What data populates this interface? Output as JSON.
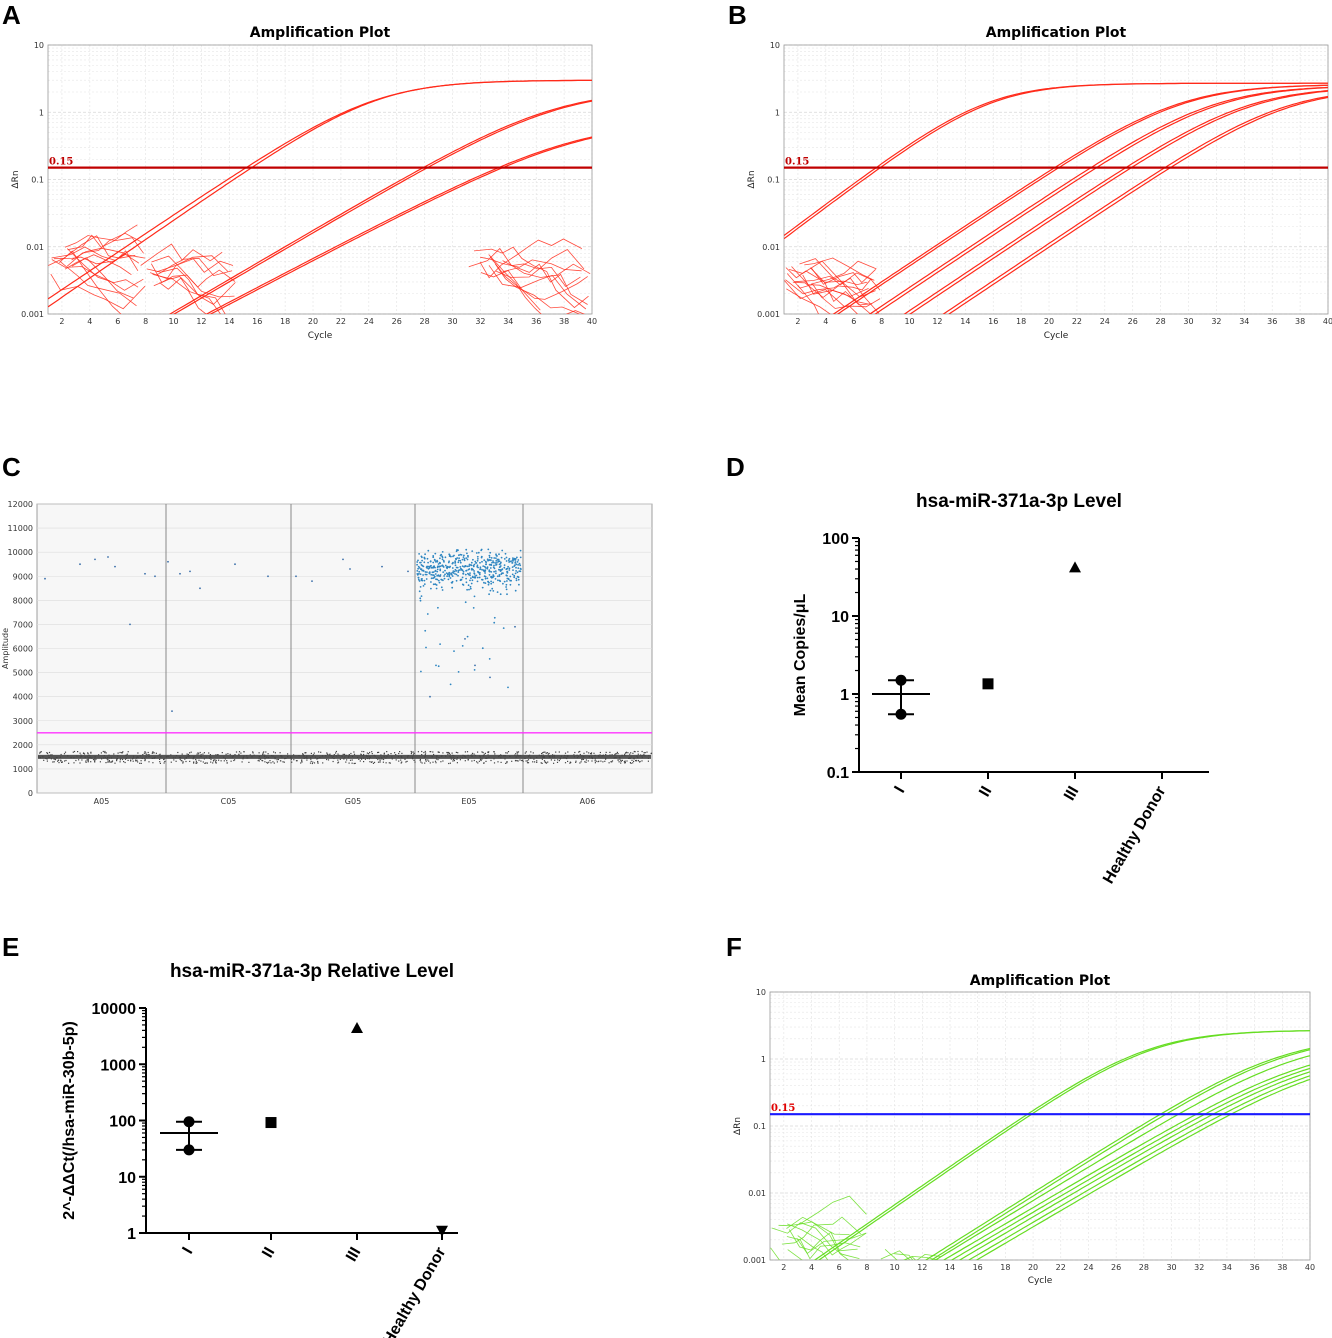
{
  "panels": {
    "A": "A",
    "B": "B",
    "C": "C",
    "D": "D",
    "E": "E",
    "F": "F"
  },
  "chart_data": [
    {
      "id": "A",
      "type": "line",
      "title": "Amplification Plot",
      "xlabel": "Cycle",
      "ylabel": "ΔRn",
      "yscale": "log",
      "ylim": [
        0.001,
        10
      ],
      "xlim": [
        1,
        40
      ],
      "xticks": [
        2,
        4,
        6,
        8,
        10,
        12,
        14,
        16,
        18,
        20,
        22,
        24,
        26,
        28,
        30,
        32,
        34,
        36,
        38,
        40
      ],
      "yticks": [
        {
          "v": 10,
          "label": "10"
        },
        {
          "v": 1,
          "label": "1"
        },
        {
          "v": 0.1,
          "label": "0.1"
        },
        {
          "v": 0.01,
          "label": "0.01"
        },
        {
          "v": 0.001,
          "label": "0.001"
        }
      ],
      "threshold": {
        "value": 0.15,
        "label": "0.15",
        "color": "#c00000"
      },
      "line_color": "#ff2a1a",
      "curves": [
        {
          "ct": 15.6,
          "plateau": 3.0,
          "k": 0.33
        },
        {
          "ct": 15.2,
          "plateau": 3.0,
          "k": 0.32
        },
        {
          "ct": 27.9,
          "plateau": 2.2,
          "k": 0.28
        },
        {
          "ct": 28.2,
          "plateau": 2.2,
          "k": 0.28
        },
        {
          "ct": 33.3,
          "plateau": 0.75,
          "k": 0.25
        },
        {
          "ct": 33.6,
          "plateau": 0.75,
          "k": 0.25
        }
      ]
    },
    {
      "id": "B",
      "type": "line",
      "title": "Amplification Plot",
      "xlabel": "Cycle",
      "ylabel": "ΔRn",
      "yscale": "log",
      "ylim": [
        0.001,
        10
      ],
      "xlim": [
        1,
        40
      ],
      "xticks": [
        2,
        4,
        6,
        8,
        10,
        12,
        14,
        16,
        18,
        20,
        22,
        24,
        26,
        28,
        30,
        32,
        34,
        36,
        38,
        40
      ],
      "yticks": [
        {
          "v": 10,
          "label": "10"
        },
        {
          "v": 1,
          "label": "1"
        },
        {
          "v": 0.1,
          "label": "0.1"
        },
        {
          "v": 0.01,
          "label": "0.01"
        },
        {
          "v": 0.001,
          "label": "0.001"
        }
      ],
      "threshold": {
        "value": 0.15,
        "label": "0.15",
        "color": "#c00000"
      },
      "line_color": "#ff2a1a",
      "curves": [
        {
          "ct": 7.6,
          "plateau": 2.7,
          "k": 0.36
        },
        {
          "ct": 7.9,
          "plateau": 2.7,
          "k": 0.36
        },
        {
          "ct": 20.4,
          "plateau": 2.6,
          "k": 0.32
        },
        {
          "ct": 20.7,
          "plateau": 2.6,
          "k": 0.32
        },
        {
          "ct": 23.0,
          "plateau": 2.5,
          "k": 0.32
        },
        {
          "ct": 23.4,
          "plateau": 2.5,
          "k": 0.32
        },
        {
          "ct": 25.5,
          "plateau": 2.4,
          "k": 0.32
        },
        {
          "ct": 25.9,
          "plateau": 2.4,
          "k": 0.32
        },
        {
          "ct": 28.3,
          "plateau": 2.3,
          "k": 0.32
        },
        {
          "ct": 28.7,
          "plateau": 2.3,
          "k": 0.32
        }
      ]
    },
    {
      "id": "C",
      "type": "scatter",
      "ylabel": "Amplitude",
      "ylim": [
        0,
        12000
      ],
      "yticks": [
        0,
        1000,
        2000,
        3000,
        4000,
        5000,
        6000,
        7000,
        8000,
        9000,
        10000,
        11000,
        12000
      ],
      "wells": [
        "A05",
        "C05",
        "G05",
        "E05",
        "A06"
      ],
      "threshold": 2500,
      "threshold_color": "#ff33ff",
      "negative_band": [
        1250,
        1750
      ],
      "positive_well": "E05",
      "positive_cluster_mean": 9250
    },
    {
      "id": "D",
      "type": "scatter",
      "title": "hsa-miR-371a-3p Level",
      "ylabel": "Mean Copies/μL",
      "yscale": "log",
      "ylim": [
        0.1,
        100
      ],
      "yticks": [
        {
          "v": 100,
          "label": "100"
        },
        {
          "v": 10,
          "label": "10"
        },
        {
          "v": 1,
          "label": "1"
        },
        {
          "v": 0.1,
          "label": "0.1"
        }
      ],
      "categories": [
        "I",
        "II",
        "III",
        "Healthy Donor"
      ],
      "series": [
        {
          "category": "I",
          "marker": "circle",
          "points": [
            1.5,
            0.55
          ],
          "mean": 1.0
        },
        {
          "category": "II",
          "marker": "square",
          "points": [
            1.35
          ]
        },
        {
          "category": "III",
          "marker": "triangle-up",
          "points": [
            42
          ]
        },
        {
          "category": "Healthy Donor",
          "marker": "none",
          "points": []
        }
      ]
    },
    {
      "id": "E",
      "type": "scatter",
      "title": "hsa-miR-371a-3p Relative Level",
      "ylabel": "2^-ΔΔCt(/hsa-miR-30b-5p)",
      "yscale": "log",
      "ylim": [
        1,
        10000
      ],
      "yticks": [
        {
          "v": 10000,
          "label": "10000"
        },
        {
          "v": 1000,
          "label": "1000"
        },
        {
          "v": 100,
          "label": "100"
        },
        {
          "v": 10,
          "label": "10"
        },
        {
          "v": 1,
          "label": "1"
        }
      ],
      "categories": [
        "I",
        "II",
        "III",
        "Healthy Donor"
      ],
      "series": [
        {
          "category": "I",
          "marker": "circle",
          "points": [
            95,
            30
          ],
          "mean": 60
        },
        {
          "category": "II",
          "marker": "square",
          "points": [
            92
          ]
        },
        {
          "category": "III",
          "marker": "triangle-up",
          "points": [
            4400
          ]
        },
        {
          "category": "Healthy Donor",
          "marker": "triangle-down",
          "points": [
            1.05
          ]
        }
      ]
    },
    {
      "id": "F",
      "type": "line",
      "title": "Amplification Plot",
      "xlabel": "Cycle",
      "ylabel": "ΔRn",
      "yscale": "log",
      "ylim": [
        0.001,
        10
      ],
      "xlim": [
        1,
        40
      ],
      "xticks": [
        2,
        4,
        6,
        8,
        10,
        12,
        14,
        16,
        18,
        20,
        22,
        24,
        26,
        28,
        30,
        32,
        34,
        36,
        38,
        40
      ],
      "yticks": [
        {
          "v": 10,
          "label": "10"
        },
        {
          "v": 1,
          "label": "1"
        },
        {
          "v": 0.1,
          "label": "0.1"
        },
        {
          "v": 0.01,
          "label": "0.01"
        },
        {
          "v": 0.001,
          "label": "0.001"
        }
      ],
      "threshold": {
        "value": 0.15,
        "label": "0.15",
        "color": "#1a1aff"
      },
      "line_color": "#66dd22",
      "curves": [
        {
          "ct": 19.6,
          "plateau": 2.7,
          "k": 0.33
        },
        {
          "ct": 19.9,
          "plateau": 2.7,
          "k": 0.33
        },
        {
          "ct": 29.2,
          "plateau": 2.2,
          "k": 0.3
        },
        {
          "ct": 29.6,
          "plateau": 2.2,
          "k": 0.3
        },
        {
          "ct": 30.5,
          "plateau": 2.0,
          "k": 0.29
        },
        {
          "ct": 31.8,
          "plateau": 1.6,
          "k": 0.28
        },
        {
          "ct": 32.4,
          "plateau": 1.5,
          "k": 0.28
        },
        {
          "ct": 33.0,
          "plateau": 1.4,
          "k": 0.28
        },
        {
          "ct": 33.7,
          "plateau": 1.3,
          "k": 0.28
        },
        {
          "ct": 34.3,
          "plateau": 1.2,
          "k": 0.28
        }
      ]
    }
  ]
}
